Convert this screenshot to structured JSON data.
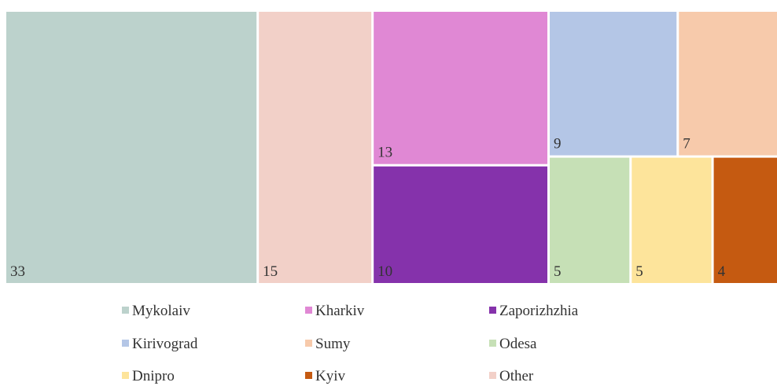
{
  "chart_data": {
    "type": "treemap",
    "categories": [
      "Mykolaiv",
      "Kharkiv",
      "Zaporizhzhia",
      "Kirivograd",
      "Sumy",
      "Odesa",
      "Dnipro",
      "Kyiv",
      "Other"
    ],
    "values": [
      33,
      13,
      10,
      9,
      7,
      5,
      5,
      4,
      15
    ],
    "colors": [
      "#bcd2cc",
      "#e088d4",
      "#8532ab",
      "#b4c6e6",
      "#f7caab",
      "#c6e0b6",
      "#fde49b",
      "#c55a11",
      "#f2d0c8"
    ],
    "legend": "bottom"
  }
}
